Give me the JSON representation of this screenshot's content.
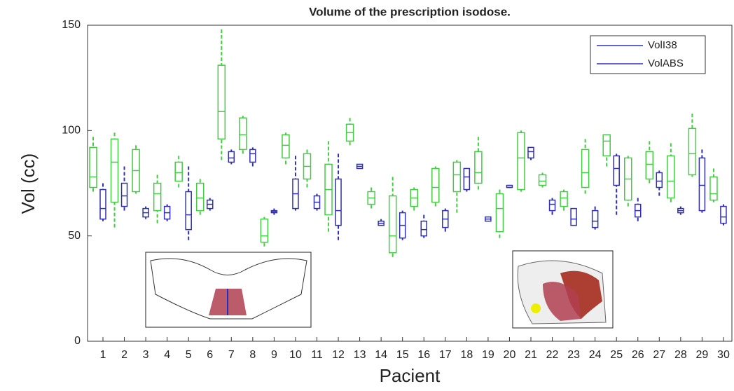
{
  "chart_data": {
    "type": "boxplot",
    "title": "Volume of the prescription isodose.",
    "xlabel": "Pacient",
    "ylabel": "Vol (cc)",
    "categories": [
      "1",
      "2",
      "3",
      "4",
      "5",
      "6",
      "7",
      "8",
      "9",
      "10",
      "11",
      "12",
      "13",
      "14",
      "15",
      "16",
      "17",
      "18",
      "19",
      "20",
      "21",
      "22",
      "23",
      "24",
      "25",
      "26",
      "27",
      "28",
      "29",
      "30"
    ],
    "ylim": [
      0,
      150
    ],
    "yticks": [
      0,
      50,
      100,
      150
    ],
    "legend": "upper right",
    "legend_line_color": "#3030c0",
    "series": [
      {
        "name": "VolI38",
        "color": "#44cc44",
        "values": [
          [
            71,
            73,
            78,
            92,
            97
          ],
          [
            54,
            66,
            85,
            96,
            99
          ],
          [
            70,
            71,
            81,
            91,
            93
          ],
          [
            56,
            62,
            70,
            75,
            79
          ],
          [
            73,
            76,
            80,
            85,
            88
          ],
          [
            60,
            62,
            68,
            75,
            77
          ],
          [
            86,
            96,
            109,
            131,
            148
          ],
          [
            89,
            91,
            98,
            106,
            107
          ],
          [
            45,
            47,
            50,
            58,
            59
          ],
          [
            84,
            87,
            93,
            98,
            99
          ],
          [
            73,
            77,
            83,
            89,
            91
          ],
          [
            52,
            60,
            72,
            84,
            95
          ],
          [
            93,
            95,
            99,
            103,
            106
          ],
          [
            63,
            65,
            68,
            71,
            73
          ],
          [
            40,
            42,
            50,
            69,
            78
          ],
          [
            62,
            64,
            68,
            72,
            73
          ],
          [
            64,
            66,
            73,
            82,
            83
          ],
          [
            61,
            71,
            79,
            85,
            86
          ],
          [
            72,
            75,
            80,
            90,
            97
          ],
          [
            49,
            52,
            63,
            70,
            72
          ],
          [
            71,
            72,
            87,
            99,
            100
          ],
          [
            73,
            74,
            76,
            79,
            80
          ],
          [
            62,
            64,
            68,
            71,
            72
          ],
          [
            70,
            73,
            80,
            91,
            96
          ],
          [
            83,
            88,
            95,
            98,
            98
          ],
          [
            64,
            67,
            77,
            87,
            88
          ],
          [
            75,
            77,
            84,
            90,
            95
          ],
          [
            66,
            68,
            76,
            88,
            94
          ],
          [
            78,
            79,
            89,
            101,
            108
          ],
          [
            66,
            67,
            70,
            78,
            82
          ]
        ]
      },
      {
        "name": "VolABS",
        "color": "#3030b0",
        "values": [
          [
            57,
            58,
            63,
            72,
            75
          ],
          [
            62,
            64,
            69,
            75,
            83
          ],
          [
            58,
            59,
            61,
            63,
            64
          ],
          [
            57,
            58,
            61,
            64,
            65
          ],
          [
            48,
            53,
            60,
            71,
            83
          ],
          [
            62,
            63,
            65,
            67,
            68
          ],
          [
            84,
            85,
            87,
            90,
            91
          ],
          [
            83,
            85,
            89,
            91,
            92
          ],
          [
            60,
            61,
            61.5,
            62,
            63
          ],
          [
            62,
            63,
            70,
            77,
            88
          ],
          [
            62,
            63,
            66,
            69,
            70
          ],
          [
            48,
            55,
            62,
            77,
            89
          ],
          [
            82,
            82,
            83,
            84,
            84
          ],
          [
            55,
            55,
            56,
            57,
            58
          ],
          [
            48,
            49,
            55,
            61,
            62
          ],
          [
            49,
            50,
            53,
            57,
            60
          ],
          [
            52,
            54,
            58,
            62,
            63
          ],
          [
            71,
            72,
            78,
            82,
            82
          ],
          [
            57,
            57,
            58,
            59,
            59
          ],
          [
            73,
            73,
            73,
            74,
            74
          ],
          [
            86,
            87,
            90,
            92,
            92
          ],
          [
            60,
            62,
            65,
            67,
            68
          ],
          [
            55,
            55,
            58,
            63,
            63
          ],
          [
            53,
            54,
            57,
            62,
            64
          ],
          [
            60,
            74,
            82,
            88,
            89
          ],
          [
            57,
            59,
            62,
            65,
            68
          ],
          [
            69,
            73,
            76,
            80,
            81
          ],
          [
            60,
            61,
            62,
            63,
            64
          ],
          [
            61,
            62,
            74,
            87,
            91
          ],
          [
            55,
            56,
            59,
            64,
            65
          ]
        ]
      }
    ]
  }
}
